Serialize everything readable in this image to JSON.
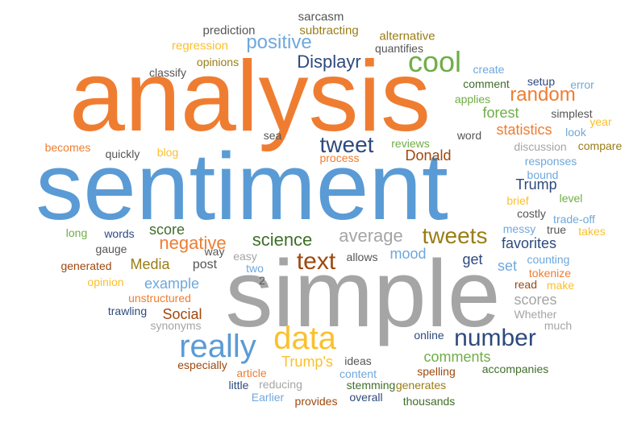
{
  "palette": {
    "orange": "#ef7d31",
    "blue": "#5a9bd5",
    "gray": "#a5a5a5",
    "gold": "#fbc02d",
    "navy": "#2e4a7d",
    "green": "#70ad47",
    "brown": "#9e480e",
    "olive": "#9a7d15",
    "darkgreen": "#3f6f2a",
    "darkgray": "#555555",
    "lightblue": "#6fa8dc"
  },
  "words": [
    {
      "text": "analysis",
      "color": "orange"
    },
    {
      "text": "sentiment",
      "color": "blue"
    },
    {
      "text": "simple",
      "color": "gray"
    },
    {
      "text": "data",
      "color": "gold"
    },
    {
      "text": "really",
      "color": "blue"
    },
    {
      "text": "cool",
      "color": "green"
    },
    {
      "text": "tweets",
      "color": "olive"
    },
    {
      "text": "tweet",
      "color": "navy"
    },
    {
      "text": "text",
      "color": "brown"
    },
    {
      "text": "number",
      "color": "navy"
    },
    {
      "text": "positive",
      "color": "lightblue"
    },
    {
      "text": "Displayr",
      "color": "navy"
    },
    {
      "text": "random",
      "color": "orange"
    },
    {
      "text": "average",
      "color": "gray"
    },
    {
      "text": "negative",
      "color": "orange"
    },
    {
      "text": "science",
      "color": "darkgreen"
    },
    {
      "text": "forest",
      "color": "green"
    },
    {
      "text": "statistics",
      "color": "orange"
    },
    {
      "text": "Donald",
      "color": "brown"
    },
    {
      "text": "Trump",
      "color": "navy"
    },
    {
      "text": "Trump's",
      "color": "gold"
    },
    {
      "text": "comments",
      "color": "green"
    },
    {
      "text": "Media",
      "color": "olive"
    },
    {
      "text": "Social",
      "color": "brown"
    },
    {
      "text": "mood",
      "color": "lightblue"
    },
    {
      "text": "score",
      "color": "darkgreen"
    },
    {
      "text": "scores",
      "color": "gray"
    },
    {
      "text": "favorites",
      "color": "navy"
    },
    {
      "text": "example",
      "color": "lightblue"
    },
    {
      "text": "post",
      "color": "darkgray"
    },
    {
      "text": "get",
      "color": "navy"
    },
    {
      "text": "set",
      "color": "lightblue"
    },
    {
      "text": "sarcasm",
      "color": "darkgray"
    },
    {
      "text": "prediction",
      "color": "darkgray"
    },
    {
      "text": "subtracting",
      "color": "olive"
    },
    {
      "text": "alternative",
      "color": "olive"
    },
    {
      "text": "quantifies",
      "color": "darkgray"
    },
    {
      "text": "regression",
      "color": "gold"
    },
    {
      "text": "opinions",
      "color": "olive"
    },
    {
      "text": "classify",
      "color": "darkgray"
    },
    {
      "text": "create",
      "color": "lightblue"
    },
    {
      "text": "comment",
      "color": "darkgreen"
    },
    {
      "text": "setup",
      "color": "navy"
    },
    {
      "text": "error",
      "color": "lightblue"
    },
    {
      "text": "applies",
      "color": "green"
    },
    {
      "text": "simplest",
      "color": "darkgray"
    },
    {
      "text": "year",
      "color": "gold"
    },
    {
      "text": "look",
      "color": "lightblue"
    },
    {
      "text": "word",
      "color": "darkgray"
    },
    {
      "text": "reviews",
      "color": "green"
    },
    {
      "text": "discussion",
      "color": "gray"
    },
    {
      "text": "compare",
      "color": "olive"
    },
    {
      "text": "responses",
      "color": "lightblue"
    },
    {
      "text": "bound",
      "color": "lightblue"
    },
    {
      "text": "brief",
      "color": "gold"
    },
    {
      "text": "level",
      "color": "green"
    },
    {
      "text": "costly",
      "color": "darkgray"
    },
    {
      "text": "trade-off",
      "color": "lightblue"
    },
    {
      "text": "true",
      "color": "darkgray"
    },
    {
      "text": "takes",
      "color": "gold"
    },
    {
      "text": "messy",
      "color": "lightblue"
    },
    {
      "text": "counting",
      "color": "lightblue"
    },
    {
      "text": "tokenize",
      "color": "orange"
    },
    {
      "text": "read",
      "color": "brown"
    },
    {
      "text": "make",
      "color": "gold"
    },
    {
      "text": "Whether",
      "color": "gray"
    },
    {
      "text": "much",
      "color": "gray"
    },
    {
      "text": "online",
      "color": "navy"
    },
    {
      "text": "ideas",
      "color": "darkgray"
    },
    {
      "text": "content",
      "color": "lightblue"
    },
    {
      "text": "spelling",
      "color": "brown"
    },
    {
      "text": "accompanies",
      "color": "darkgreen"
    },
    {
      "text": "generates",
      "color": "olive"
    },
    {
      "text": "stemming",
      "color": "darkgreen"
    },
    {
      "text": "overall",
      "color": "navy"
    },
    {
      "text": "thousands",
      "color": "darkgreen"
    },
    {
      "text": "provides",
      "color": "brown"
    },
    {
      "text": "reducing",
      "color": "gray"
    },
    {
      "text": "Earlier",
      "color": "lightblue"
    },
    {
      "text": "little",
      "color": "navy"
    },
    {
      "text": "article",
      "color": "orange"
    },
    {
      "text": "especially",
      "color": "brown"
    },
    {
      "text": "synonyms",
      "color": "gray"
    },
    {
      "text": "trawling",
      "color": "navy"
    },
    {
      "text": "unstructured",
      "color": "orange"
    },
    {
      "text": "opinion",
      "color": "gold"
    },
    {
      "text": "generated",
      "color": "brown"
    },
    {
      "text": "gauge",
      "color": "darkgray"
    },
    {
      "text": "long",
      "color": "green"
    },
    {
      "text": "words",
      "color": "navy"
    },
    {
      "text": "way",
      "color": "darkgray"
    },
    {
      "text": "easy",
      "color": "gray"
    },
    {
      "text": "two",
      "color": "lightblue"
    },
    {
      "text": "2",
      "color": "darkgray"
    },
    {
      "text": "allows",
      "color": "darkgray"
    },
    {
      "text": "becomes",
      "color": "orange"
    },
    {
      "text": "quickly",
      "color": "darkgray"
    },
    {
      "text": "blog",
      "color": "gold"
    },
    {
      "text": "process",
      "color": "orange"
    },
    {
      "text": "sea",
      "color": "darkgray"
    }
  ]
}
